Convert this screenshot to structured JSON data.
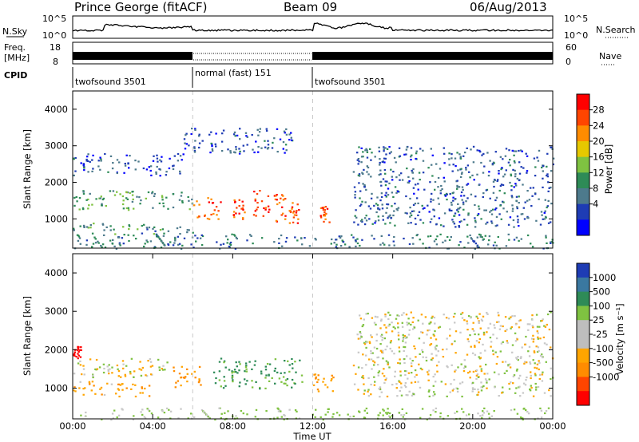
{
  "header": {
    "station": "Prince George (fitACF)",
    "beam": "Beam 09",
    "date": "06/Aug/2013"
  },
  "panels": {
    "nsky_label": "N.Sky",
    "nsky_ticks": [
      "10^5",
      "10^0"
    ],
    "nsearch_label": "N.Search",
    "nsearch_ticks": [
      "10^5",
      "10^0"
    ],
    "freq_label_line1": "Freq.",
    "freq_label_line2": "[MHz]",
    "freq_ticks": [
      "18",
      "8"
    ],
    "nave_label": "Nave",
    "nave_ticks": [
      "60",
      "0"
    ],
    "cpid_label": "CPID",
    "cpid_segments": [
      {
        "label": "twofsound 3501",
        "start_hour": 0,
        "end_hour": 6
      },
      {
        "label": "normal (fast) 151",
        "start_hour": 6,
        "end_hour": 12
      },
      {
        "label": "twofsound 3501",
        "start_hour": 12,
        "end_hour": 24
      }
    ]
  },
  "colorbars": {
    "power": {
      "title": "Power [dB]",
      "ticks": [
        "28",
        "24",
        "20",
        "16",
        "12",
        "8",
        "4"
      ],
      "colors": [
        "#ff0000",
        "#ff4500",
        "#ff8c00",
        "#e6c800",
        "#7fc241",
        "#2e8b57",
        "#4d7a8c",
        "#1e3cb4",
        "#0000ff"
      ]
    },
    "velocity": {
      "title": "Velocity [m s⁻¹]",
      "ticks": [
        "1000",
        "500",
        "100",
        "25",
        "-25",
        "-100",
        "-500",
        "-1000"
      ],
      "colors": [
        "#1e3cb4",
        "#3a78a0",
        "#2e8b57",
        "#7fc241",
        "#bebebe",
        "#bebebe",
        "#ffa500",
        "#ff8c00",
        "#ff4500",
        "#ff0000"
      ]
    }
  },
  "chart_data": [
    {
      "type": "heatmap",
      "name": "power",
      "ylabel": "Slant Range [km]",
      "ylim": [
        200,
        4500
      ],
      "yticks": [
        1000,
        2000,
        3000,
        4000
      ],
      "xlim": [
        0,
        24
      ],
      "echo_regions": [
        {
          "t0": 0.0,
          "t1": 6.0,
          "r0": 1250,
          "r1": 1800,
          "power": 12
        },
        {
          "t0": 0.0,
          "t1": 6.0,
          "r0": 600,
          "r1": 900,
          "power": 10
        },
        {
          "t0": 0.0,
          "t1": 5.5,
          "r0": 2200,
          "r1": 2800,
          "power": 5
        },
        {
          "t0": 5.5,
          "t1": 11.0,
          "r0": 2800,
          "r1": 3500,
          "power": 5
        },
        {
          "t0": 6.0,
          "t1": 7.5,
          "r0": 1000,
          "r1": 1600,
          "power": 26
        },
        {
          "t0": 8.0,
          "t1": 8.6,
          "r0": 1000,
          "r1": 1600,
          "power": 26
        },
        {
          "t0": 9.0,
          "t1": 9.8,
          "r0": 1000,
          "r1": 1800,
          "power": 28
        },
        {
          "t0": 10.0,
          "t1": 10.6,
          "r0": 900,
          "r1": 1700,
          "power": 26
        },
        {
          "t0": 10.8,
          "t1": 11.3,
          "r0": 900,
          "r1": 1500,
          "power": 26
        },
        {
          "t0": 12.3,
          "t1": 12.8,
          "r0": 900,
          "r1": 1400,
          "power": 26
        },
        {
          "t0": 14.0,
          "t1": 24.0,
          "r0": 800,
          "r1": 3000,
          "power": 6
        },
        {
          "t0": 0.0,
          "t1": 24.0,
          "r0": 200,
          "r1": 600,
          "power": 8
        }
      ]
    },
    {
      "type": "heatmap",
      "name": "velocity",
      "ylabel": "Slant Range [km]",
      "xlabel": "Time UT",
      "ylim": [
        200,
        4500
      ],
      "yticks": [
        1000,
        2000,
        3000,
        4000
      ],
      "xlim": [
        0,
        24
      ],
      "xticks": [
        "00:00",
        "04:00",
        "08:00",
        "12:00",
        "16:00",
        "20:00",
        "00:00"
      ],
      "echo_regions": [
        {
          "t0": 0.0,
          "t1": 5.0,
          "r0": 1300,
          "r1": 1800,
          "velocity": 0
        },
        {
          "t0": 0.0,
          "t1": 4.0,
          "r0": 800,
          "r1": 1200,
          "velocity": -200
        },
        {
          "t0": 0.0,
          "t1": 0.4,
          "r0": 1800,
          "r1": 2100,
          "velocity": -1000
        },
        {
          "t0": 5.0,
          "t1": 6.5,
          "r0": 1000,
          "r1": 1600,
          "velocity": -300
        },
        {
          "t0": 7.0,
          "t1": 11.5,
          "r0": 1000,
          "r1": 1800,
          "velocity": 300
        },
        {
          "t0": 12.0,
          "t1": 13.0,
          "r0": 900,
          "r1": 1500,
          "velocity": -200
        },
        {
          "t0": 14.0,
          "t1": 24.0,
          "r0": 800,
          "r1": 3000,
          "velocity": 0
        },
        {
          "t0": 0.0,
          "t1": 24.0,
          "r0": 200,
          "r1": 500,
          "velocity": 100
        }
      ]
    }
  ]
}
